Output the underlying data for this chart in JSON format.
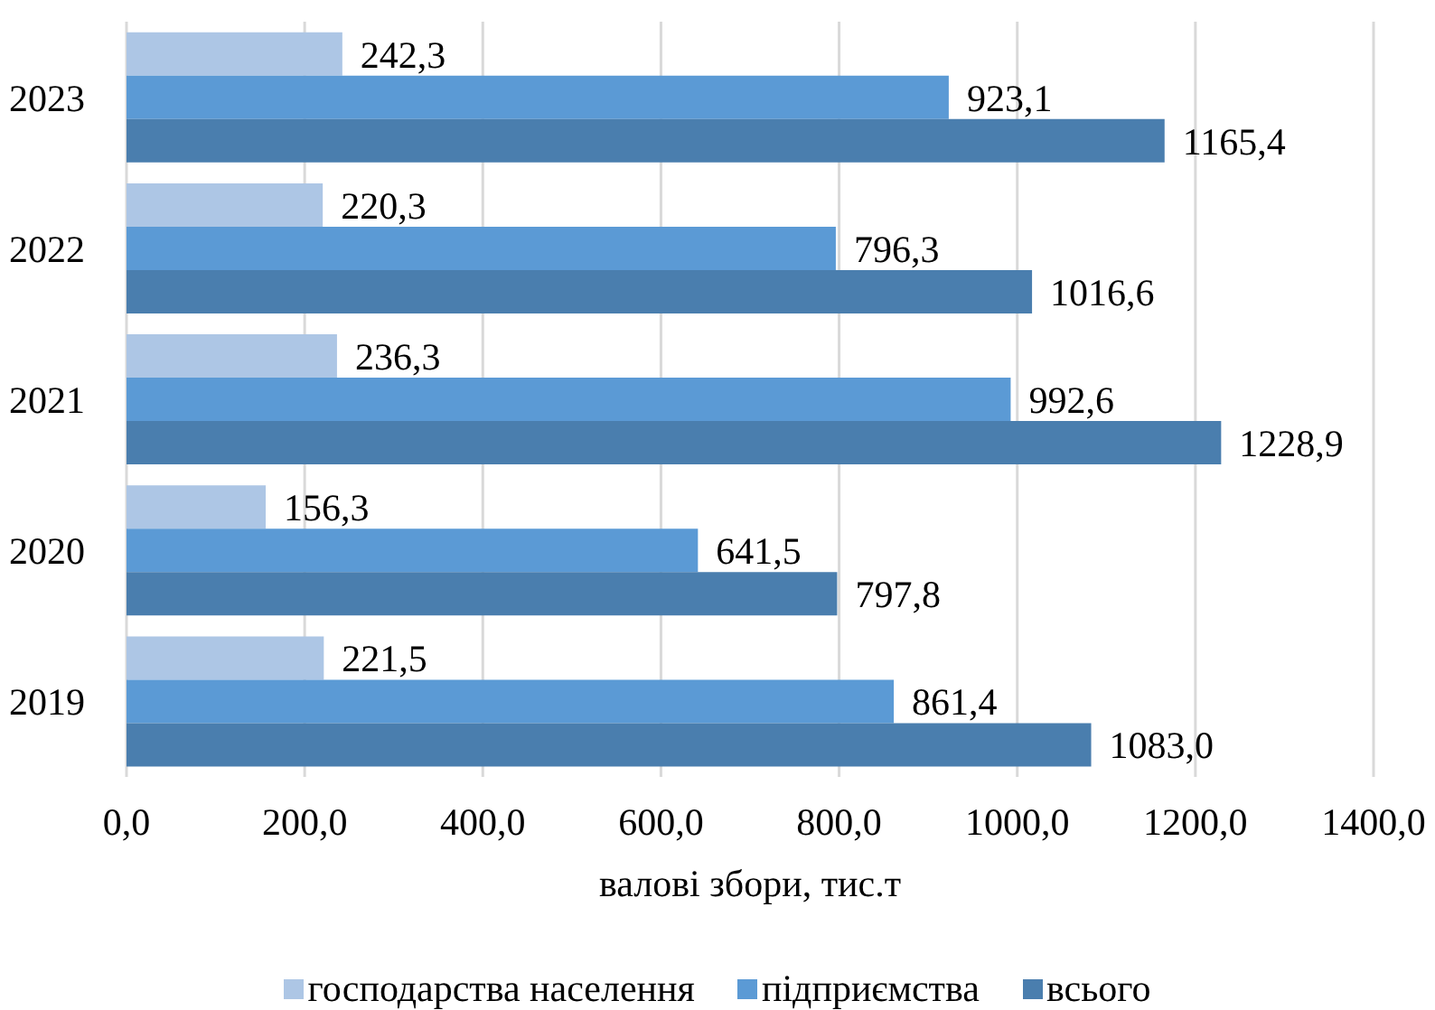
{
  "chart_data": {
    "type": "bar",
    "orientation": "horizontal",
    "xlabel": "валові збори, тис.т",
    "categories": [
      "2023",
      "2022",
      "2021",
      "2020",
      "2019"
    ],
    "series": [
      {
        "name": "господарства населення",
        "color": "#adc6e5",
        "values": [
          242.3,
          220.3,
          236.3,
          156.3,
          221.5
        ],
        "value_labels": [
          "242,3",
          "220,3",
          "236,3",
          "156,3",
          "221,5"
        ]
      },
      {
        "name": "підприємства",
        "color": "#5b9ad5",
        "values": [
          923.1,
          796.3,
          992.6,
          641.5,
          861.4
        ],
        "value_labels": [
          "923,1",
          "796,3",
          "992,6",
          "641,5",
          "861,4"
        ]
      },
      {
        "name": "всього",
        "color": "#4a7eae",
        "values": [
          1165.4,
          1016.6,
          1228.9,
          797.8,
          1083.0
        ],
        "value_labels": [
          "1165,4",
          "1016,6",
          "1228,9",
          "797,8",
          "1083,0"
        ]
      }
    ],
    "xlim": [
      0,
      1400
    ],
    "xticks": [
      {
        "value": 0,
        "label": "0,0"
      },
      {
        "value": 200,
        "label": "200,0"
      },
      {
        "value": 400,
        "label": "400,0"
      },
      {
        "value": 600,
        "label": "600,0"
      },
      {
        "value": 800,
        "label": "800,0"
      },
      {
        "value": 1000,
        "label": "1000,0"
      },
      {
        "value": 1200,
        "label": "1200,0"
      },
      {
        "value": 1400,
        "label": "1400,0"
      }
    ],
    "grid": "x",
    "legend": "bottom"
  }
}
